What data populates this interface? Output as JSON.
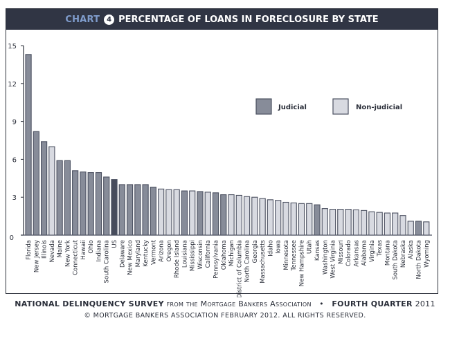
{
  "header": {
    "chart_word": "CHART",
    "chart_number": "4",
    "title": "PERCENTAGE OF LOANS IN FORECLOSURE BY STATE"
  },
  "footer": {
    "survey_name": "NATIONAL DELINQUENCY SURVEY",
    "source": "from the Mortgage Bankers Association",
    "separator": "•",
    "quarter_label": "FOURTH QUARTER",
    "year": "2011",
    "copyright": "© MORTGAGE BANKERS ASSOCIATION FEBRUARY 2012. ALL RIGHTS RESERVED."
  },
  "colors": {
    "title_bar": "#303544",
    "chart_word": "#7f9ccc",
    "judicial": "#878c99",
    "non_judicial": "#d8dae1",
    "us": "#474c5c",
    "bar_stroke": "#4b5060"
  },
  "chart_data": {
    "type": "bar",
    "title": "PERCENTAGE OF LOANS IN FORECLOSURE BY STATE",
    "xlabel": "",
    "ylabel": "",
    "ylim": [
      0,
      15
    ],
    "yticks": [
      0,
      3,
      6,
      9,
      12,
      15
    ],
    "grid": false,
    "legend": {
      "placement": "top-right",
      "entries": [
        {
          "label": "Judicial",
          "key": "J"
        },
        {
          "label": "Non-judicial",
          "key": "NJ"
        }
      ]
    },
    "categories": [
      "Florida",
      "New Jersey",
      "Illinois",
      "Nevada",
      "Maine",
      "New York",
      "Connecticut",
      "Hawaii",
      "Ohio",
      "Indiana",
      "South Carolina",
      "US",
      "Delaware",
      "New Mexico",
      "Maryland",
      "Kentucky",
      "Vermont",
      "Arizona",
      "Oregon",
      "Rhode Island",
      "Louisiana",
      "Mississippi",
      "Wisconsin",
      "California",
      "Pennsylvania",
      "Oklahoma",
      "Michigan",
      "District of Columbia",
      "North Carolina",
      "Georgia",
      "Massachusetts",
      "Idaho",
      "Iowa",
      "Minnesota",
      "Tennessee",
      "New Hampshire",
      "Utah",
      "Kansas",
      "Washington",
      "West Virginia",
      "Missouri",
      "Colorado",
      "Arkansas",
      "Alabama",
      "Virginia",
      "Texas",
      "Montana",
      "South Dakota",
      "Nebraska",
      "Alaska",
      "North Dakota",
      "Wyoming"
    ],
    "values": [
      14.3,
      8.2,
      7.4,
      7.0,
      5.9,
      5.9,
      5.1,
      5.0,
      4.95,
      4.95,
      4.6,
      4.4,
      4.0,
      4.0,
      4.0,
      4.0,
      3.8,
      3.65,
      3.6,
      3.6,
      3.5,
      3.5,
      3.45,
      3.4,
      3.35,
      3.2,
      3.2,
      3.15,
      3.05,
      3.0,
      2.9,
      2.8,
      2.75,
      2.6,
      2.55,
      2.5,
      2.5,
      2.4,
      2.1,
      2.05,
      2.05,
      2.05,
      2.0,
      1.95,
      1.85,
      1.8,
      1.75,
      1.75,
      1.55,
      1.1,
      1.1,
      1.05
    ],
    "types": [
      "J",
      "J",
      "J",
      "NJ",
      "J",
      "J",
      "J",
      "J",
      "J",
      "J",
      "J",
      "US",
      "J",
      "J",
      "J",
      "J",
      "J",
      "NJ",
      "NJ",
      "NJ",
      "J",
      "NJ",
      "J",
      "NJ",
      "J",
      "J",
      "NJ",
      "NJ",
      "NJ",
      "NJ",
      "NJ",
      "NJ",
      "NJ",
      "NJ",
      "NJ",
      "NJ",
      "NJ",
      "J",
      "NJ",
      "NJ",
      "NJ",
      "NJ",
      "NJ",
      "NJ",
      "NJ",
      "NJ",
      "NJ",
      "NJ",
      "NJ",
      "NJ",
      "J",
      "NJ"
    ]
  }
}
